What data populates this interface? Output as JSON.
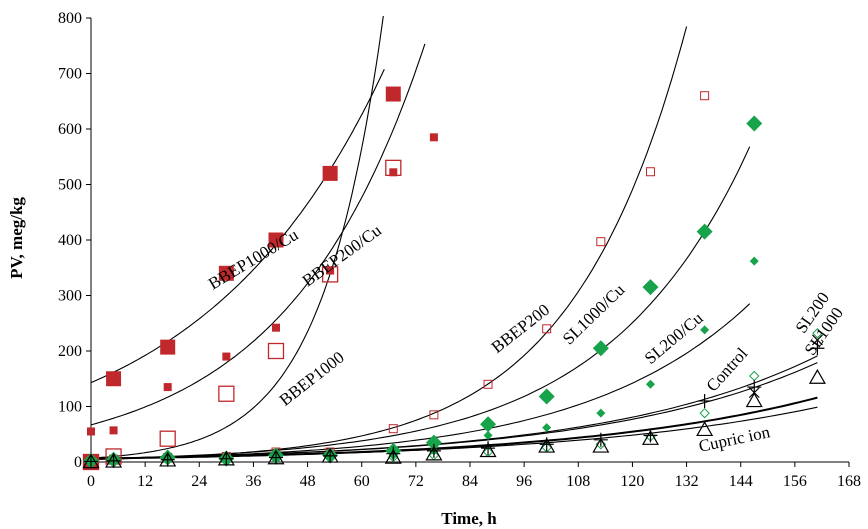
{
  "chart_data": {
    "type": "scatter",
    "title": "",
    "xlabel": "Time, h",
    "ylabel": "PV, meg/kg",
    "xlim": [
      0,
      168
    ],
    "ylim": [
      0,
      800
    ],
    "xticks": [
      0,
      12,
      24,
      36,
      48,
      60,
      72,
      84,
      96,
      108,
      120,
      132,
      144,
      156,
      168
    ],
    "yticks": [
      0,
      100,
      200,
      300,
      400,
      500,
      600,
      700,
      800
    ],
    "grid": false,
    "legend": "none",
    "colors": {
      "red": "#c0282c",
      "green": "#16a34a",
      "black": "#000000"
    },
    "series": [
      {
        "name": "BBEP1000/Cu",
        "marker": "filled-square-large",
        "color": "#c0282c",
        "x": [
          0,
          5,
          17,
          30,
          41,
          53,
          67
        ],
        "y": [
          0,
          150,
          207,
          340,
          400,
          520,
          663
        ]
      },
      {
        "name": "BBEP200/Cu",
        "marker": "open-square-large",
        "color": "#c0282c",
        "x": [
          0,
          5,
          17,
          30,
          41,
          53,
          67
        ],
        "y": [
          0,
          10,
          42,
          123,
          200,
          338,
          530
        ]
      },
      {
        "name": "BBEP1000",
        "marker": "filled-square-small",
        "color": "#c0282c",
        "x": [
          0,
          5,
          17,
          30,
          41,
          53,
          67,
          76
        ],
        "y": [
          55,
          57,
          135,
          190,
          242,
          345,
          522,
          585
        ]
      },
      {
        "name": "BBEP200",
        "marker": "open-square-small",
        "color": "#c0282c",
        "x": [
          5,
          17,
          30,
          41,
          53,
          67,
          76,
          88,
          101,
          113,
          124,
          136
        ],
        "y": [
          5,
          8,
          10,
          18,
          18,
          60,
          85,
          140,
          240,
          397,
          523,
          660
        ]
      },
      {
        "name": "SL1000/Cu",
        "marker": "filled-diamond-large",
        "color": "#16a34a",
        "x": [
          0,
          5,
          17,
          30,
          41,
          53,
          67,
          76,
          88,
          101,
          113,
          124,
          136,
          147
        ],
        "y": [
          2,
          4,
          8,
          6,
          12,
          12,
          20,
          35,
          68,
          118,
          205,
          315,
          415,
          610
        ]
      },
      {
        "name": "SL200/Cu",
        "marker": "filled-diamond-small",
        "color": "#16a34a",
        "x": [
          0,
          5,
          17,
          30,
          41,
          53,
          67,
          76,
          88,
          101,
          113,
          124,
          136,
          147
        ],
        "y": [
          1,
          2,
          5,
          5,
          8,
          8,
          12,
          20,
          48,
          62,
          88,
          140,
          238,
          362
        ]
      },
      {
        "name": "SL200",
        "marker": "open-diamond",
        "color": "#16a34a",
        "x": [
          0,
          5,
          17,
          30,
          41,
          53,
          67,
          76,
          88,
          101,
          113,
          124,
          136,
          147,
          161
        ],
        "y": [
          1,
          2,
          3,
          4,
          5,
          7,
          9,
          12,
          18,
          26,
          32,
          46,
          88,
          155,
          232
        ]
      },
      {
        "name": "SL1000",
        "marker": "cross",
        "color": "#16a34a",
        "x": [
          147,
          161
        ],
        "y": [
          125,
          220
        ]
      },
      {
        "name": "Control",
        "marker": "plus",
        "color": "#000000",
        "x": [
          0,
          5,
          17,
          30,
          41,
          53,
          67,
          76,
          88,
          101,
          113,
          124,
          136,
          147,
          161
        ],
        "y": [
          1,
          2,
          4,
          6,
          8,
          11,
          15,
          20,
          25,
          32,
          40,
          48,
          110,
          135,
          205
        ]
      },
      {
        "name": "Cupric ion",
        "marker": "open-triangle",
        "color": "#000000",
        "x": [
          0,
          5,
          17,
          30,
          41,
          53,
          67,
          76,
          88,
          101,
          113,
          124,
          136,
          147,
          161
        ],
        "y": [
          0,
          1,
          3,
          5,
          7,
          10,
          8,
          14,
          20,
          28,
          28,
          42,
          58,
          110,
          152
        ]
      }
    ],
    "trendlines": [
      {
        "name": "BBEP1000/Cu",
        "fit": "exponential",
        "a": 143,
        "b": 0.0246,
        "x_range": [
          0,
          65
        ]
      },
      {
        "name": "BBEP200/Cu",
        "fit": "exponential",
        "a": 67,
        "b": 0.0327,
        "x_range": [
          0,
          74
        ]
      },
      {
        "name": "BBEP1000",
        "fit": "exponential",
        "a": 7,
        "b": 0.0732,
        "x_range": [
          0,
          66
        ]
      },
      {
        "name": "BBEP200",
        "fit": "exponential",
        "a": 4.5,
        "b": 0.0391,
        "x_range": [
          0,
          132
        ]
      },
      {
        "name": "SL1000/Cu",
        "fit": "exponential",
        "a": 5.8,
        "b": 0.0314,
        "x_range": [
          0,
          146
        ]
      },
      {
        "name": "SL200/Cu",
        "fit": "exponential",
        "a": 5.7,
        "b": 0.0268,
        "x_range": [
          0,
          146
        ]
      },
      {
        "name": "SL200",
        "fit": "exponential",
        "a": 6.5,
        "b": 0.0206,
        "x_range": [
          0,
          161
        ]
      },
      {
        "name": "SL1000",
        "fit": "exponential",
        "a": 6.5,
        "b": 0.021,
        "x_range": [
          0,
          161
        ]
      },
      {
        "name": "Control",
        "fit": "exponential",
        "a": 6.0,
        "b": 0.0184,
        "x_range": [
          0,
          161
        ]
      },
      {
        "name": "Cupric ion",
        "fit": "exponential",
        "a": 6.0,
        "b": 0.0174,
        "x_range": [
          0,
          161
        ]
      }
    ],
    "annotations": [
      {
        "text": "BBEP1000/Cu",
        "x": 27,
        "y": 310,
        "angle": -31
      },
      {
        "text": "BBEP200/Cu",
        "x": 48,
        "y": 315,
        "angle": -36
      },
      {
        "text": "BBEP1000",
        "x": 43,
        "y": 100,
        "angle": -38
      },
      {
        "text": "BBEP200",
        "x": 90,
        "y": 195,
        "angle": -38
      },
      {
        "text": "SL1000/Cu",
        "x": 106,
        "y": 210,
        "angle": -44
      },
      {
        "text": "SL200/Cu",
        "x": 124,
        "y": 175,
        "angle": -40
      },
      {
        "text": "Control",
        "x": 138,
        "y": 125,
        "angle": -48
      },
      {
        "text": "SL200",
        "x": 158,
        "y": 230,
        "angle": -55
      },
      {
        "text": "SL1000",
        "x": 160,
        "y": 190,
        "angle": -55
      },
      {
        "text": "Cupric ion",
        "x": 135,
        "y": 18,
        "angle": -12
      }
    ]
  }
}
